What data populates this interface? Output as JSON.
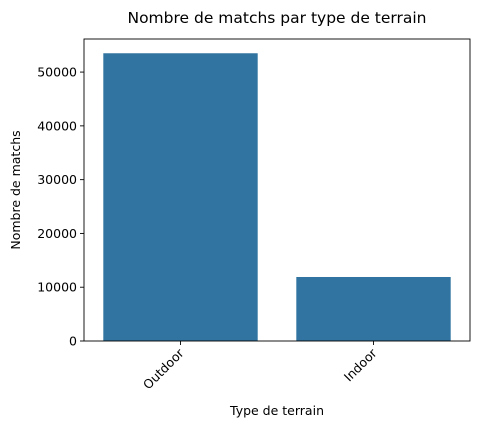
{
  "chart_data": {
    "type": "bar",
    "title": "Nombre de matchs par type de terrain",
    "xlabel": "Type de terrain",
    "ylabel": "Nombre de matchs",
    "categories": [
      "Outdoor",
      "Indoor"
    ],
    "values": [
      53500,
      11900
    ],
    "ylim": [
      0,
      56150
    ],
    "yticks": [
      0,
      10000,
      20000,
      30000,
      40000,
      50000
    ],
    "ytick_labels": [
      "0",
      "10000",
      "20000",
      "30000",
      "40000",
      "50000"
    ],
    "bar_color": "#3274a1",
    "xtick_rotation_deg": -45,
    "grid": false,
    "legend": false
  }
}
